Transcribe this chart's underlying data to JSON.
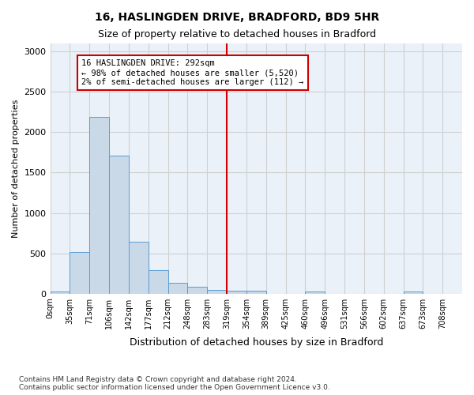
{
  "title1": "16, HASLINGDEN DRIVE, BRADFORD, BD9 5HR",
  "title2": "Size of property relative to detached houses in Bradford",
  "xlabel": "Distribution of detached houses by size in Bradford",
  "ylabel": "Number of detached properties",
  "footnote": "Contains HM Land Registry data © Crown copyright and database right 2024.\nContains public sector information licensed under the Open Government Licence v3.0.",
  "bin_labels": [
    "0sqm",
    "35sqm",
    "71sqm",
    "106sqm",
    "142sqm",
    "177sqm",
    "212sqm",
    "248sqm",
    "283sqm",
    "319sqm",
    "354sqm",
    "389sqm",
    "425sqm",
    "460sqm",
    "496sqm",
    "531sqm",
    "566sqm",
    "602sqm",
    "637sqm",
    "673sqm",
    "708sqm"
  ],
  "bar_values": [
    30,
    520,
    2190,
    1710,
    640,
    290,
    130,
    80,
    50,
    35,
    35,
    0,
    0,
    30,
    0,
    0,
    0,
    0,
    25,
    0,
    0
  ],
  "bar_color": "#c9d9e8",
  "bar_edge_color": "#5b9bd5",
  "grid_color": "#d0d0d0",
  "background_color": "#eaf1f8",
  "vline_color": "#cc0000",
  "annotation_text": "16 HASLINGDEN DRIVE: 292sqm\n← 98% of detached houses are smaller (5,520)\n2% of semi-detached houses are larger (112) →",
  "ylim": [
    0,
    3100
  ],
  "yticks": [
    0,
    500,
    1000,
    1500,
    2000,
    2500,
    3000
  ]
}
